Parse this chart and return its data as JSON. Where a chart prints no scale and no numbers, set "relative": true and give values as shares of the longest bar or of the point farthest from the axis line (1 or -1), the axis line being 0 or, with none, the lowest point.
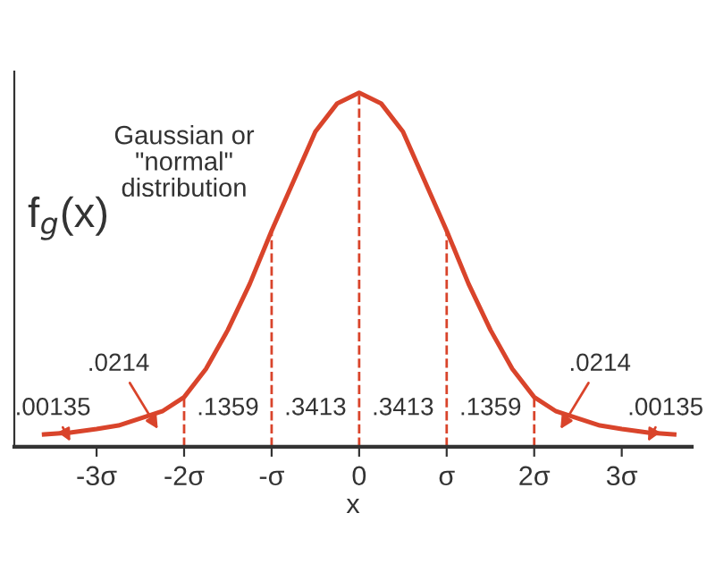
{
  "chart_data": {
    "type": "line",
    "relative": true,
    "xlabel": "x",
    "ylabel": "f$_{g}$(x)",
    "x": [
      -3.6,
      -3.3,
      -3,
      -2.75,
      -2.5,
      -2.25,
      -2,
      -1.75,
      -1.5,
      -1.25,
      -1,
      -0.75,
      -0.5,
      -0.25,
      0,
      0.25,
      0.5,
      0.75,
      1,
      1.25,
      1.5,
      1.75,
      2,
      2.25,
      2.5,
      2.75,
      3,
      3.3,
      3.6
    ],
    "series": [
      {
        "color": "#d9442b",
        "values": [
          0.035,
          0.04,
          0.05,
          0.06,
          0.08,
          0.1,
          0.14,
          0.22,
          0.33,
          0.46,
          0.61,
          0.75,
          0.89,
          0.97,
          1,
          0.97,
          0.89,
          0.75,
          0.61,
          0.46,
          0.33,
          0.22,
          0.14,
          0.1,
          0.08,
          0.06,
          0.05,
          0.04,
          0.035
        ]
      }
    ],
    "xlim": [
      -3.94,
      3.8
    ],
    "xticks": [
      {
        "value": -3,
        "label": "-3σ"
      },
      {
        "value": -2,
        "label": "-2σ"
      },
      {
        "value": -1,
        "label": "-σ"
      },
      0,
      {
        "value": 1,
        "label": "σ"
      },
      {
        "value": 2,
        "label": "2σ"
      },
      {
        "value": 3,
        "label": "3σ"
      }
    ],
    "ref_lines": [
      {
        "axis": "x",
        "value": -2,
        "color": "#d9442b",
        "line_style": "dashed"
      },
      {
        "axis": "x",
        "value": -1,
        "color": "#d9442b",
        "line_style": "dashed"
      },
      {
        "axis": "x",
        "value": 0,
        "color": "#d9442b",
        "line_style": "dashed"
      },
      {
        "axis": "x",
        "value": 1,
        "color": "#d9442b",
        "line_style": "dashed"
      },
      {
        "axis": "x",
        "value": 2,
        "color": "#d9442b",
        "line_style": "dashed"
      }
    ],
    "annotations": [
      "Gaussian or\n\"normal\"\ndistribution",
      ".00135",
      ".0214",
      ".1359",
      ".3413",
      ".3413",
      ".1359",
      ".0214",
      ".00135"
    ],
    "grid": false,
    "marker": "none",
    "line_style": "solid"
  }
}
